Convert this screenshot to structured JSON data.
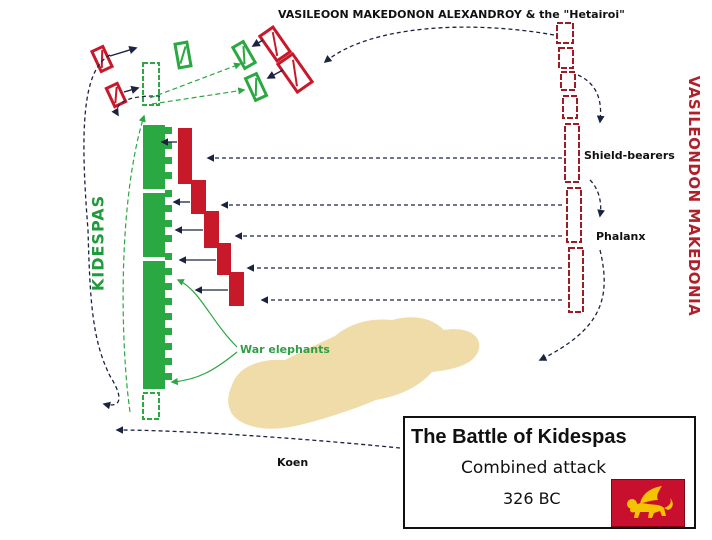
{
  "labels": {
    "top_title": "VASILEOON MAKEDONON ALEXANDROY & the \"Hetairoi\"",
    "macedonia": "VASILEONDON MAKEDONIA",
    "kidespas": "KIDESPAS",
    "shield_bearers": "Shield-bearers",
    "phalanx": "Phalanx",
    "war_elephants": "War elephants",
    "koen": "Koen"
  },
  "title_box": {
    "title": "The Battle of Kidespas",
    "subtitle": "Combined attack",
    "date": "326 BC"
  },
  "colors": {
    "macedonian": "#c8192a",
    "kidespas": "#2aa842",
    "terrain": "#efdca8",
    "arrow": "#1b2340",
    "flag_red": "#c8102e",
    "flag_emblem": "#f5c400"
  },
  "icons": {
    "flag": "winged-lion-flag-icon"
  }
}
